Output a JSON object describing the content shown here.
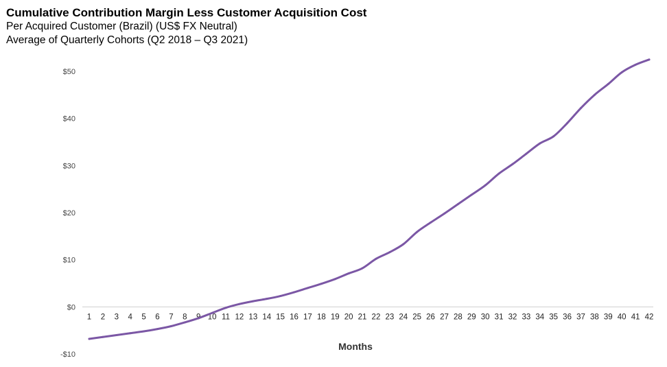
{
  "header": {
    "title": "Cumulative Contribution Margin Less Customer Acquisition Cost",
    "subtitle1": "Per Acquired Customer (Brazil) (US$ FX Neutral)",
    "subtitle2": "Average of Quarterly Cohorts (Q2 2018 – Q3 2021)"
  },
  "chart_data": {
    "type": "line",
    "title": "Cumulative Contribution Margin Less Customer Acquisition Cost",
    "xlabel": "Months",
    "ylabel": "",
    "ylim": [
      -10,
      50
    ],
    "y_ticks": [
      50,
      40,
      30,
      20,
      10,
      0,
      -10
    ],
    "y_tick_labels": [
      "$50",
      "$40",
      "$30",
      "$20",
      "$10",
      "$0",
      "-$10"
    ],
    "x": [
      1,
      2,
      3,
      4,
      5,
      6,
      7,
      8,
      9,
      10,
      11,
      12,
      13,
      14,
      15,
      16,
      17,
      18,
      19,
      20,
      21,
      22,
      23,
      24,
      25,
      26,
      27,
      28,
      29,
      30,
      31,
      32,
      33,
      34,
      35,
      36,
      37,
      38,
      39,
      40,
      41,
      42
    ],
    "grid": false,
    "line_color": "#7b57a5",
    "series": [
      {
        "values": [
          -6.8,
          -6.4,
          -6.0,
          -5.6,
          -5.2,
          -4.7,
          -4.1,
          -3.3,
          -2.4,
          -1.3,
          -0.2,
          0.6,
          1.2,
          1.7,
          2.3,
          3.1,
          4.0,
          4.9,
          5.9,
          7.1,
          8.2,
          10.2,
          11.6,
          13.3,
          15.9,
          17.9,
          19.8,
          21.8,
          23.8,
          25.8,
          28.3,
          30.3,
          32.5,
          34.7,
          36.2,
          39.0,
          42.2,
          45.0,
          47.3,
          49.8,
          51.4,
          52.5
        ]
      }
    ]
  }
}
